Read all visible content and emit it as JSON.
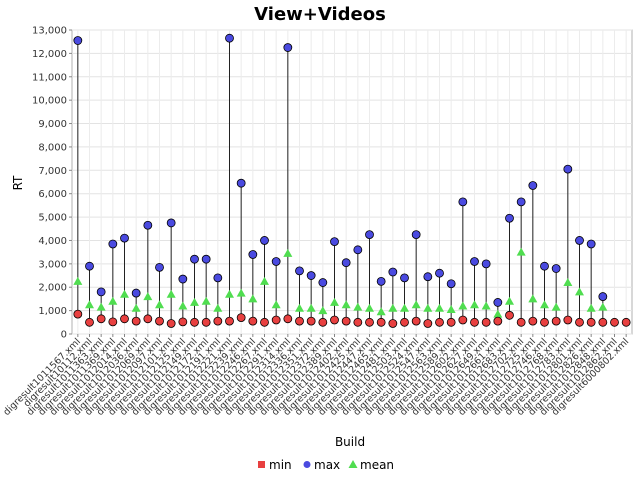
{
  "chart_data": {
    "type": "scatter",
    "title": "View+Videos",
    "xlabel": "Build",
    "ylabel": "RT",
    "ylim": [
      0,
      13000
    ],
    "yticks": [
      "0",
      "1,000",
      "2,000",
      "3,000",
      "4,000",
      "5,000",
      "6,000",
      "7,000",
      "8,000",
      "9,000",
      "10,000",
      "11,000",
      "12,000",
      "13,000"
    ],
    "categories": [
      "digresult1011567.xml",
      "digresult10112.xml",
      "digresult1011363.xml",
      "digresult1011369.xml",
      "digresult1012014.xml",
      "digresult1012036.xml",
      "digresult1012069.xml",
      "digresult1012097.xml",
      "digresult1012101.xml",
      "digresult1012125.xml",
      "digresult1012149.xml",
      "digresult1012172.xml",
      "digresult1012191.xml",
      "digresult1012221.xml",
      "digresult1012239.xml",
      "digresult1012246.xml",
      "digresult1012267.xml",
      "digresult1012291.xml",
      "digresult1012314.xml",
      "digresult1012336.xml",
      "digresult1012351.xml",
      "digresult1012372.xml",
      "digresult1012389.xml",
      "digresult1012402.xml",
      "digresult1012425.xml",
      "digresult1012447.xml",
      "digresult1012465.xml",
      "digresult1012481.xml",
      "digresult1012503.xml",
      "digresult1012524.xml",
      "digresult1012547.xml",
      "digresult1012563.xml",
      "digresult1012589.xml",
      "digresult1012602.xml",
      "digresult1012627.xml",
      "digresult1012649.xml",
      "digresult1012661.xml",
      "digresult1012683.xml",
      "digresult1012702.xml",
      "digresult1012725.xml",
      "digresult1012746.xml",
      "digresult1012768.xml",
      "digresult1012783.xml",
      "digresult1012801.xml",
      "digresult1012826.xml",
      "digresult1012848.xml",
      "digresult1012862.xml",
      "digresult6000802.xml"
    ],
    "series": [
      {
        "name": "min",
        "color": "#e84040",
        "values": [
          850,
          500,
          650,
          520,
          650,
          550,
          650,
          550,
          450,
          520,
          500,
          500,
          550,
          550,
          700,
          550,
          500,
          600,
          650,
          550,
          550,
          500,
          600,
          550,
          500,
          500,
          500,
          450,
          500,
          550,
          450,
          500,
          500,
          600,
          500,
          500,
          550,
          800,
          500,
          550,
          500,
          550,
          600,
          500,
          500,
          500,
          500,
          500
        ]
      },
      {
        "name": "max",
        "color": "#4a4ae0",
        "values": [
          12550,
          2900,
          1800,
          3850,
          4100,
          1750,
          4650,
          2850,
          4750,
          2350,
          3200,
          3200,
          2400,
          12650,
          6450,
          3400,
          4000,
          3100,
          12250,
          2700,
          2500,
          2200,
          3950,
          3050,
          3600,
          4250,
          2250,
          2650,
          2400,
          4250,
          2450,
          2600,
          2150,
          5650,
          3100,
          3000,
          1350,
          4950,
          5650,
          6350,
          2900,
          2800,
          7050,
          4000,
          3850,
          1600,
          0,
          0
        ]
      },
      {
        "name": "mean",
        "color": "#50dd50",
        "values": [
          2250,
          1250,
          1150,
          1400,
          1700,
          1100,
          1600,
          1250,
          1700,
          1200,
          1350,
          1400,
          1100,
          1700,
          1750,
          1500,
          2250,
          1250,
          3450,
          1100,
          1100,
          1000,
          1350,
          1250,
          1150,
          1100,
          950,
          1100,
          1100,
          1250,
          1100,
          1100,
          1050,
          1200,
          1250,
          1200,
          850,
          1400,
          3500,
          1500,
          1250,
          1150,
          2200,
          1800,
          1100,
          1150,
          0,
          0
        ]
      }
    ],
    "legend": [
      "min",
      "max",
      "mean"
    ],
    "legend_position": "bottom",
    "grid": true
  }
}
